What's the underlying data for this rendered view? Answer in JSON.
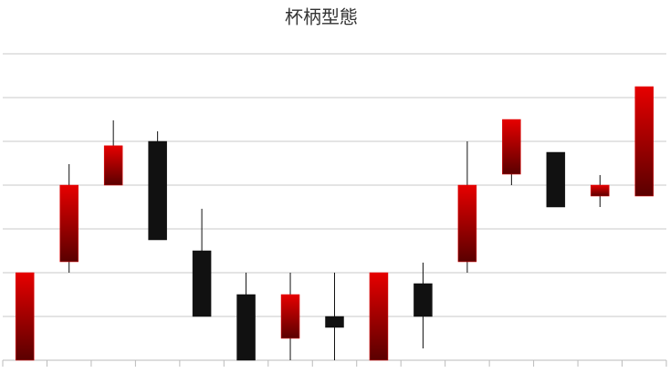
{
  "chart_data": {
    "type": "candlestick",
    "title": "杯柄型態",
    "categories": [
      null,
      null,
      null,
      null,
      null,
      null,
      null,
      null,
      null,
      null,
      null,
      null,
      null,
      null,
      null
    ],
    "open": [
      0,
      2.25,
      4,
      5,
      2.5,
      1.5,
      0.5,
      1,
      0,
      1.75,
      2.25,
      4.25,
      4.75,
      3.75,
      3.75
    ],
    "high": [
      2,
      4.48,
      5.48,
      5.23,
      3.46,
      2,
      2,
      2,
      2,
      2.23,
      5,
      5.5,
      4.75,
      4.23,
      6.25
    ],
    "low": [
      0,
      2,
      4,
      2.75,
      1,
      0,
      0,
      0,
      0,
      0.27,
      2,
      4,
      3.5,
      3.5,
      3.75
    ],
    "close": [
      2,
      4,
      4.9,
      2.75,
      1,
      0,
      1.5,
      0.75,
      2,
      1,
      4,
      5.5,
      3.5,
      4,
      6.25
    ],
    "up_color": "#e00000",
    "down_color": "#111111",
    "ylim": [
      0,
      7
    ],
    "yticks": [
      0,
      1,
      2,
      3,
      4,
      5,
      6,
      7
    ],
    "grid": true
  }
}
